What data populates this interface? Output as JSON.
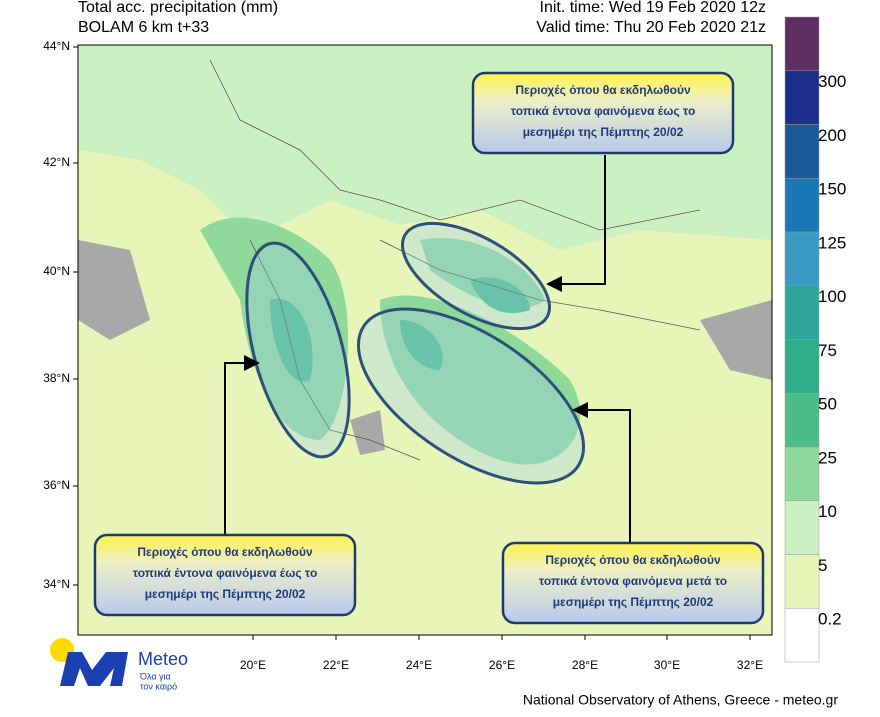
{
  "header": {
    "title": "Total acc. precipitation (mm)",
    "model": "BOLAM 6 km t+33",
    "init_time": "Init. time: Wed 19 Feb 2020 12z",
    "valid_time": "Valid time: Thu 20 Feb 2020 21z"
  },
  "map": {
    "lat_labels": [
      "44°N",
      "42°N",
      "40°N",
      "38°N",
      "36°N",
      "34°N"
    ],
    "lon_labels": [
      "20°E",
      "22°E",
      "24°E",
      "26°E",
      "28°E",
      "30°E",
      "32°E"
    ]
  },
  "colorbar": {
    "labels": [
      300,
      200,
      150,
      125,
      100,
      75,
      50,
      25,
      10,
      5,
      0.2
    ],
    "colors": [
      "#5e2d63",
      "#1c2e8c",
      "#1b5a96",
      "#1a78b8",
      "#3a9cc4",
      "#2fa69c",
      "#2fae8a",
      "#4cbd86",
      "#8fd99a",
      "#cbf0c2",
      "#e8f5b8",
      "#ffffff"
    ]
  },
  "callouts": [
    {
      "lines": [
        "Περιοχές όπου θα εκδηλωθούν",
        "τοπικά έντονα φαινόμενα έως το",
        "μεσημέρι της Πέμπτης 20/02"
      ]
    },
    {
      "lines": [
        "Περιοχές όπου θα εκδηλωθούν",
        "τοπικά έντονα φαινόμενα έως το",
        "μεσημέρι της Πέμπτης 20/02"
      ]
    },
    {
      "lines": [
        "Περιοχές όπου θα εκδηλωθούν",
        "τοπικά έντονα φαινόμενα μετά το",
        "μεσημέρι της Πέμπτης 20/02"
      ]
    }
  ],
  "logo": {
    "name": "Meteo",
    "tagline": [
      "Όλα για",
      "τον καιρό"
    ]
  },
  "footer": "National Observatory of Athens, Greece - meteo.gr"
}
